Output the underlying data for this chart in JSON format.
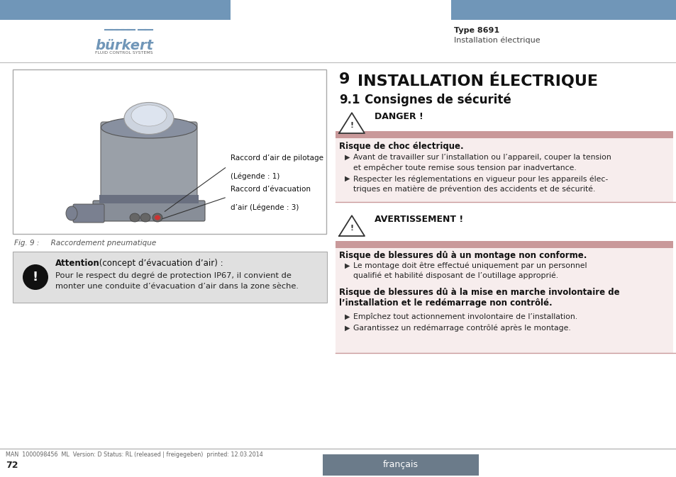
{
  "header_bar_color": "#7096b8",
  "burkert_text": "bürkert",
  "burkert_sub": "FLUID CONTROL SYSTEMS",
  "header_right_bold": "Type 8691",
  "header_right_normal": "Installation électrique",
  "section_title_num": "9",
  "section_title_text": "INSTALLATION ÉLECTRIQUE",
  "subsection_num": "9.1",
  "subsection_text": "Consignes de sécurité",
  "danger_label": "DANGER !",
  "danger_bar_color": "#c9999a",
  "danger_bg_color": "#f7eded",
  "danger_title": "Risque de choc électrique.",
  "danger_bullet1a": "Avant de travailler sur l’installation ou l’appareil, couper la tension",
  "danger_bullet1b": "et empêcher toute remise sous tension par inadvertance.",
  "danger_bullet2a": "Respecter les réglementations en vigueur pour les appareils élec-",
  "danger_bullet2b": "triques en matière de prévention des accidents et de sécurité.",
  "avert_label": "AVERTISSEMENT !",
  "avert_bar_color": "#c9999a",
  "avert_bg_color": "#f7eded",
  "avert_title1": "Risque de blessures dû à un montage non conforme.",
  "avert_bullet1a": "Le montage doit être effectué uniquement par un personnel",
  "avert_bullet1b": "qualifié et habilité disposant de l’outillage approprié.",
  "avert_title2a": "Risque de blessures dû à la mise en marche involontaire de",
  "avert_title2b": "l’installation et le redémarrage non contrôlé.",
  "avert_bullet2": "Empîchez tout actionnement involontaire de l’installation.",
  "avert_bullet3": "Garantissez un redémarrage contrôlé après le montage.",
  "fig_caption": "Fig. 9 :     Raccordement pneumatique",
  "attention_title": "Attention",
  "attention_rest": " (concept d’évacuation d’air) :",
  "attention_body1": "Pour le respect du degré de protection IP67, il convient de",
  "attention_body2": "monter une conduite d’évacuation d’air dans la zone sèche.",
  "attention_bg": "#e0e0e0",
  "label1": "Raccord d’air de pilotage",
  "label1b": "(Légende : 1)",
  "label2": "Raccord d’évacuation",
  "label2b": "d’air (Légende : 3)",
  "footer_text": "MAN  1000098456  ML  Version: D Status: RL (released | freigegeben)  printed: 12.03.2014",
  "footer_page": "72",
  "footer_lang": "français",
  "footer_lang_bg": "#6b7b8a"
}
